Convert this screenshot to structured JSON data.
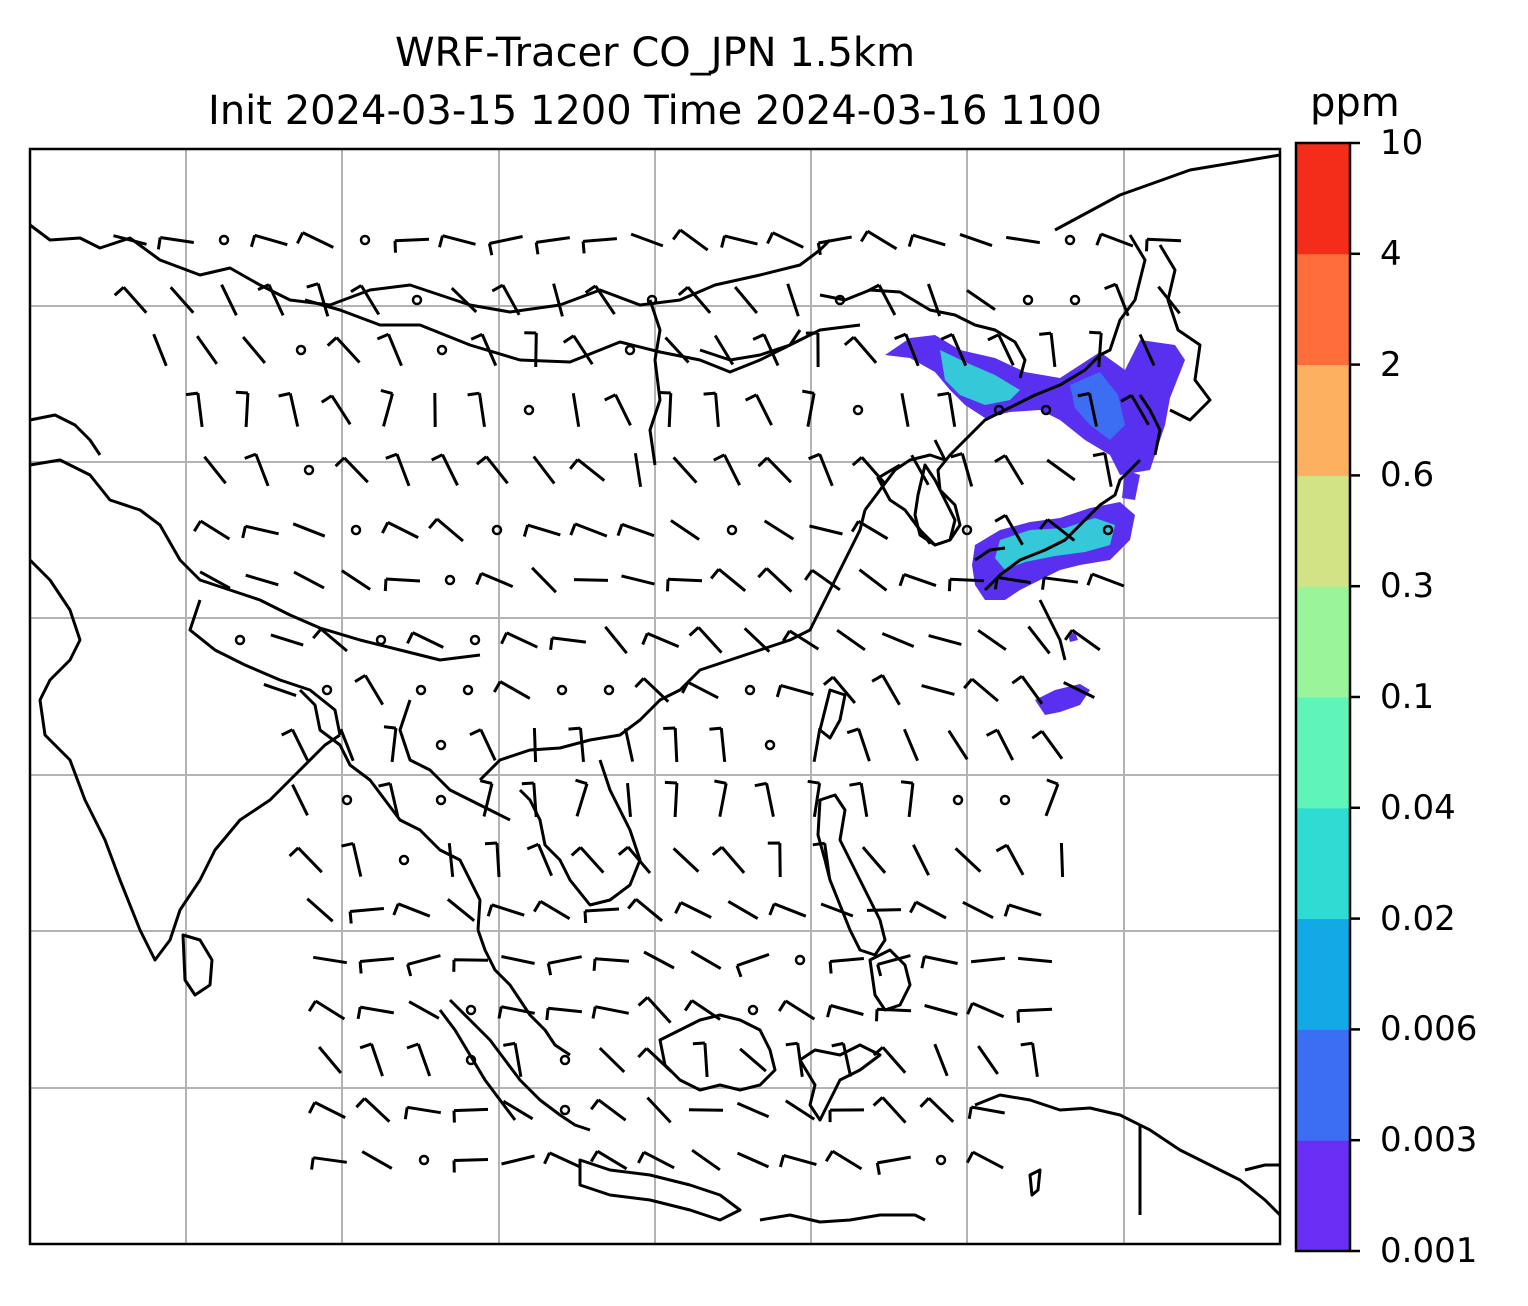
{
  "title": {
    "line1": "WRF-Tracer CO_JPN 1.5km",
    "line2": "Init 2024-03-15 1200 Time 2024-03-16 1100"
  },
  "colorbar": {
    "unit": "ppm",
    "levels": [
      "0.001",
      "0.003",
      "0.006",
      "0.02",
      "0.04",
      "0.1",
      "0.3",
      "0.6",
      "2",
      "4",
      "10"
    ],
    "colors": [
      "#6a2ff5",
      "#3b6ef2",
      "#13a8e6",
      "#2fdcd4",
      "#60f5b8",
      "#9af59a",
      "#d2e386",
      "#fdb05f",
      "#ff6e3a",
      "#f32d1a"
    ]
  },
  "map": {
    "grid_color": "#b3b3b3",
    "coast_color": "#000000",
    "plume_color": "#5a30f0",
    "plume_inner_color": "#35c8d8"
  }
}
